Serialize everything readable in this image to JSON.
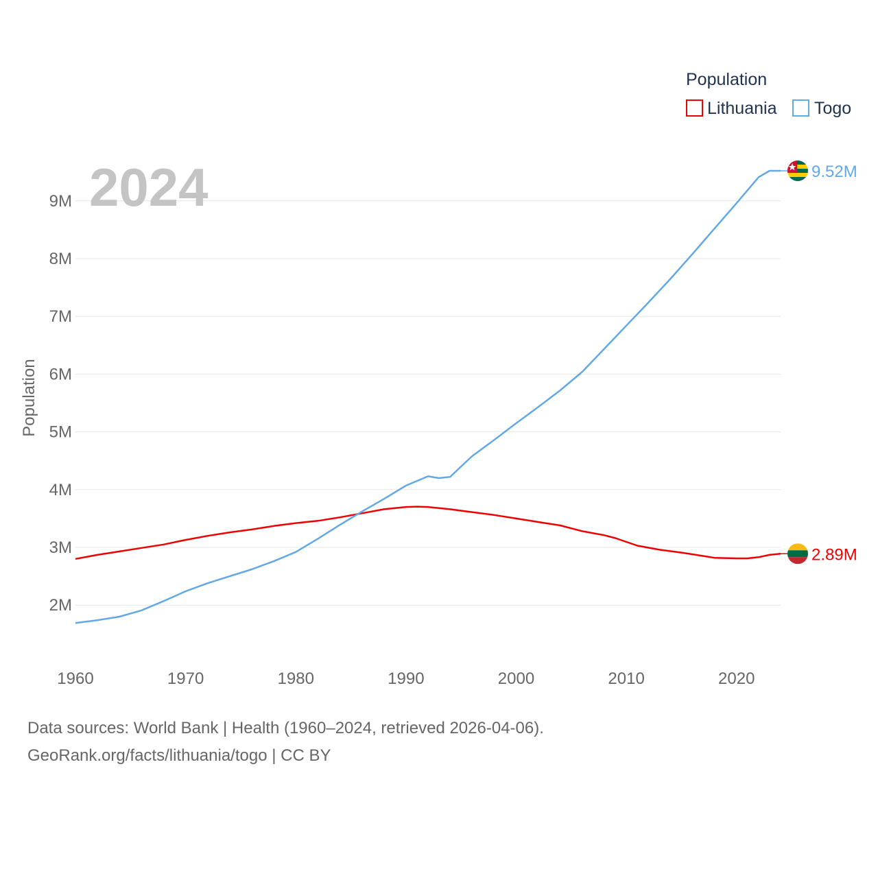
{
  "chart_data": {
    "type": "line",
    "year_label": "2024",
    "ylabel": "Population",
    "legend_title": "Population",
    "ylim": [
      1200000,
      9900000
    ],
    "xlim": [
      1960,
      2024
    ],
    "y_ticks": [
      {
        "value": 2000000,
        "label": "2M"
      },
      {
        "value": 3000000,
        "label": "3M"
      },
      {
        "value": 4000000,
        "label": "4M"
      },
      {
        "value": 5000000,
        "label": "5M"
      },
      {
        "value": 6000000,
        "label": "6M"
      },
      {
        "value": 7000000,
        "label": "7M"
      },
      {
        "value": 8000000,
        "label": "8M"
      },
      {
        "value": 9000000,
        "label": "9M"
      }
    ],
    "x_ticks": [
      {
        "value": 1960,
        "label": "1960"
      },
      {
        "value": 1970,
        "label": "1970"
      },
      {
        "value": 1980,
        "label": "1980"
      },
      {
        "value": 1990,
        "label": "1990"
      },
      {
        "value": 2000,
        "label": "2000"
      },
      {
        "value": 2010,
        "label": "2010"
      },
      {
        "value": 2020,
        "label": "2020"
      }
    ],
    "series": [
      {
        "name": "Lithuania",
        "color": "#ee0000",
        "end_label": "2.89M",
        "flag": "lithuania-flag",
        "points": [
          [
            1960,
            2800000
          ],
          [
            1962,
            2870000
          ],
          [
            1964,
            2930000
          ],
          [
            1966,
            2990000
          ],
          [
            1968,
            3050000
          ],
          [
            1970,
            3130000
          ],
          [
            1972,
            3200000
          ],
          [
            1974,
            3260000
          ],
          [
            1976,
            3310000
          ],
          [
            1978,
            3370000
          ],
          [
            1980,
            3420000
          ],
          [
            1982,
            3460000
          ],
          [
            1984,
            3520000
          ],
          [
            1986,
            3590000
          ],
          [
            1988,
            3660000
          ],
          [
            1990,
            3700000
          ],
          [
            1991,
            3705000
          ],
          [
            1992,
            3700000
          ],
          [
            1994,
            3660000
          ],
          [
            1996,
            3610000
          ],
          [
            1998,
            3560000
          ],
          [
            2000,
            3500000
          ],
          [
            2002,
            3440000
          ],
          [
            2004,
            3380000
          ],
          [
            2006,
            3280000
          ],
          [
            2008,
            3210000
          ],
          [
            2009,
            3160000
          ],
          [
            2011,
            3030000
          ],
          [
            2013,
            2960000
          ],
          [
            2015,
            2910000
          ],
          [
            2017,
            2850000
          ],
          [
            2018,
            2820000
          ],
          [
            2020,
            2810000
          ],
          [
            2021,
            2810000
          ],
          [
            2022,
            2830000
          ],
          [
            2023,
            2870000
          ],
          [
            2024,
            2890000
          ]
        ]
      },
      {
        "name": "Togo",
        "color": "#62a8e5",
        "end_label": "9.52M",
        "flag": "togo-flag",
        "points": [
          [
            1960,
            1690000
          ],
          [
            1962,
            1740000
          ],
          [
            1964,
            1800000
          ],
          [
            1966,
            1910000
          ],
          [
            1968,
            2070000
          ],
          [
            1970,
            2240000
          ],
          [
            1972,
            2380000
          ],
          [
            1974,
            2500000
          ],
          [
            1976,
            2620000
          ],
          [
            1978,
            2760000
          ],
          [
            1980,
            2920000
          ],
          [
            1982,
            3150000
          ],
          [
            1984,
            3390000
          ],
          [
            1986,
            3620000
          ],
          [
            1988,
            3840000
          ],
          [
            1990,
            4070000
          ],
          [
            1992,
            4230000
          ],
          [
            1993,
            4200000
          ],
          [
            1994,
            4220000
          ],
          [
            1995,
            4400000
          ],
          [
            1996,
            4580000
          ],
          [
            1998,
            4860000
          ],
          [
            2000,
            5150000
          ],
          [
            2002,
            5430000
          ],
          [
            2004,
            5720000
          ],
          [
            2006,
            6040000
          ],
          [
            2008,
            6440000
          ],
          [
            2010,
            6840000
          ],
          [
            2012,
            7240000
          ],
          [
            2014,
            7650000
          ],
          [
            2016,
            8080000
          ],
          [
            2018,
            8520000
          ],
          [
            2020,
            8960000
          ],
          [
            2022,
            9410000
          ],
          [
            2023,
            9520000
          ],
          [
            2024,
            9520000
          ]
        ]
      }
    ],
    "legend_position": "top-right",
    "grid": true
  },
  "footer": {
    "sources": "Data sources: World Bank | Health (1960–2024, retrieved 2026-04-06).",
    "url": "GeoRank.org/facts/lithuania/togo | CC BY"
  },
  "flag_colors": {
    "lithuania": [
      "#fdb913",
      "#006a44",
      "#c1272d"
    ],
    "togo": [
      "#006a4e",
      "#ffce00",
      "#d21034",
      "#ffffff"
    ]
  }
}
